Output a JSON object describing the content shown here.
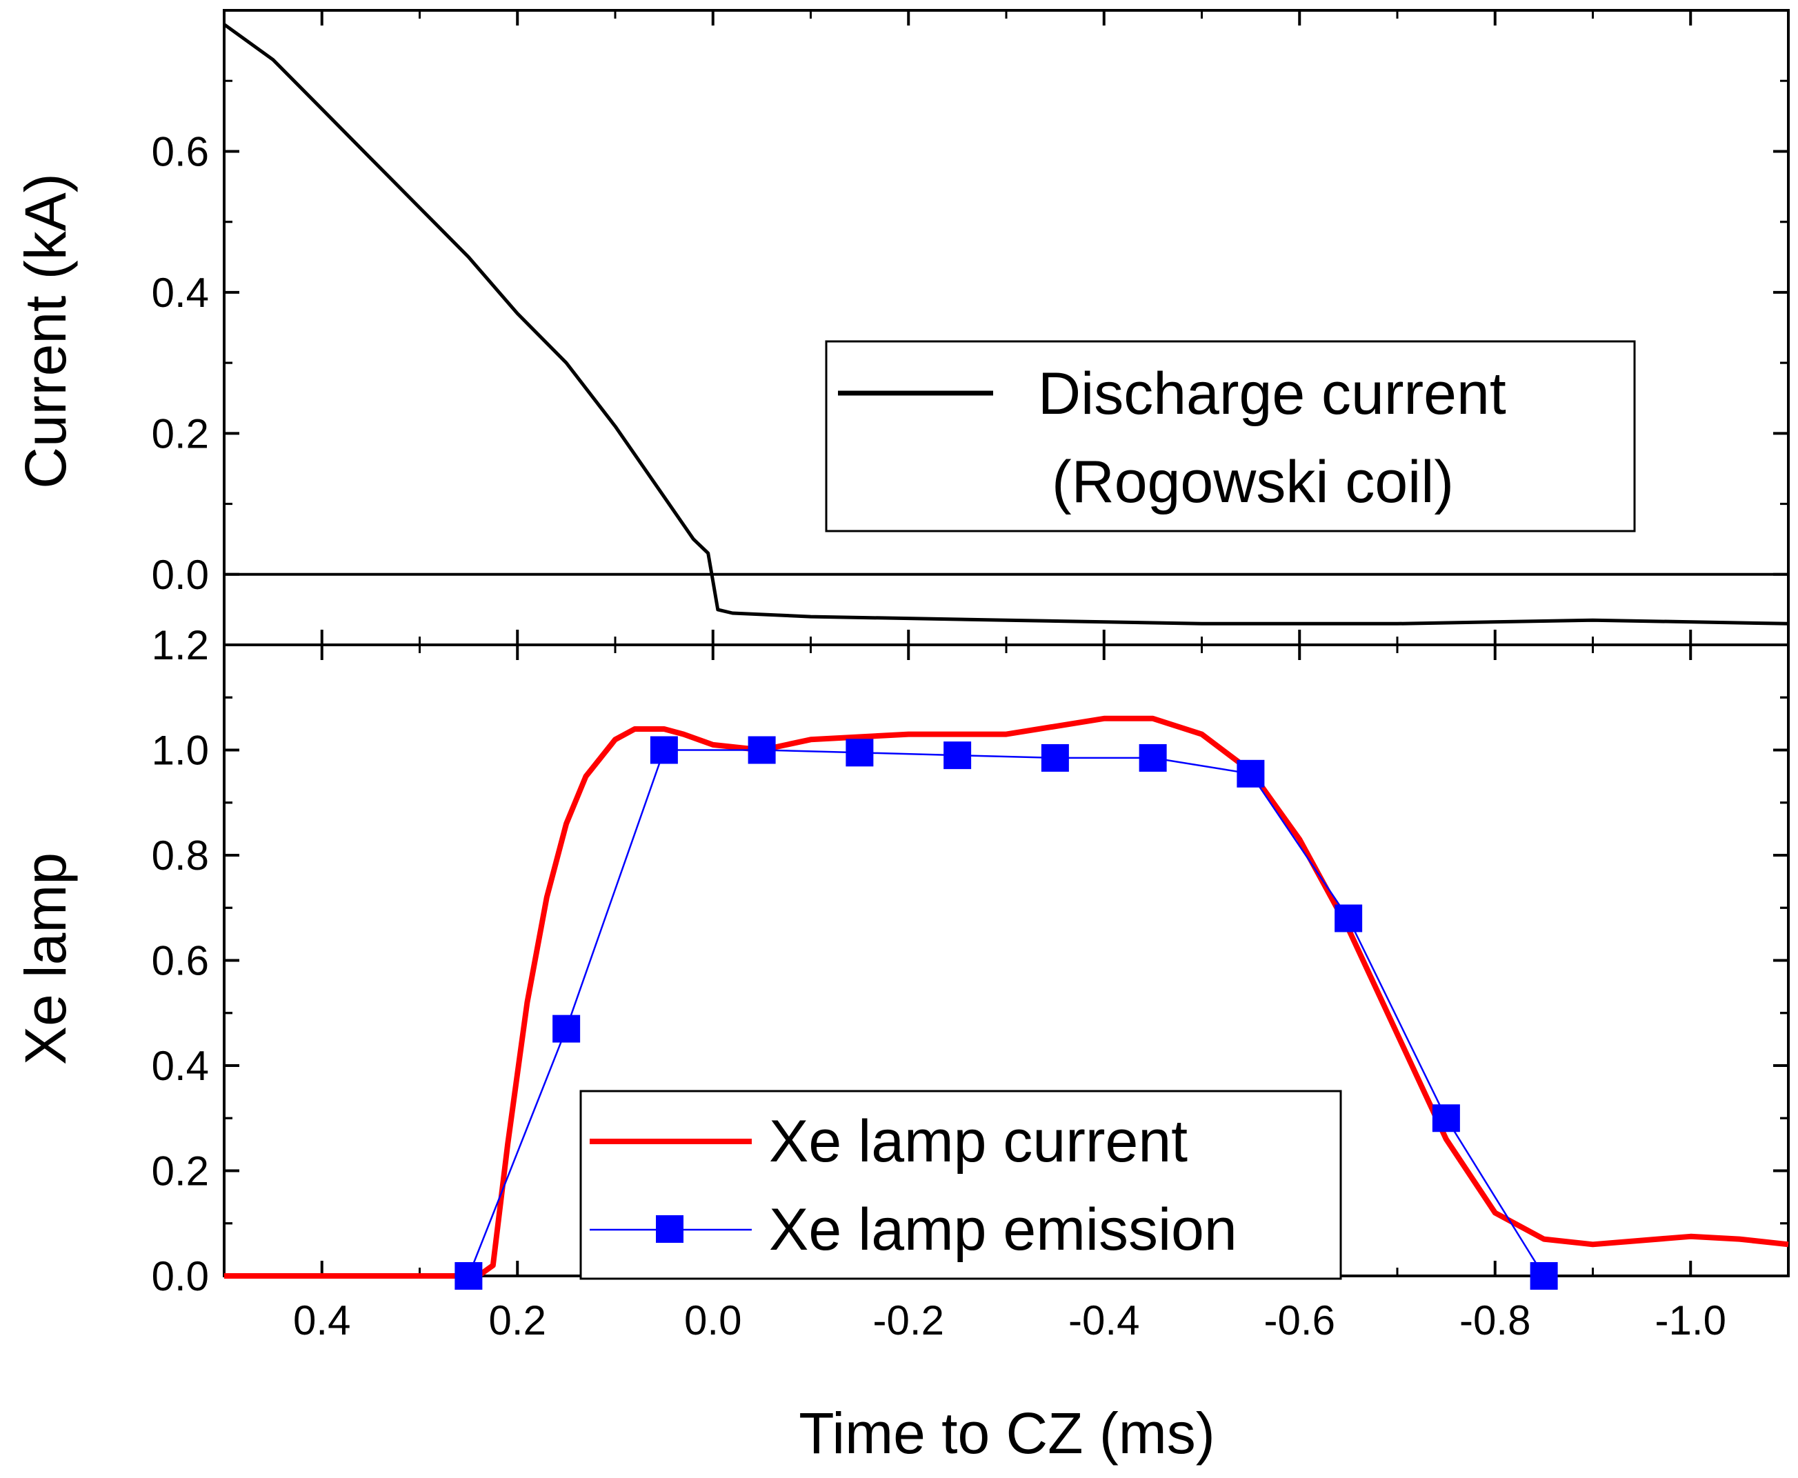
{
  "chart_data": {
    "type": "line",
    "shared_xaxis": {
      "label": "Time to CZ (ms)",
      "lim": [
        0.5,
        -1.1
      ],
      "ticks": [
        0.4,
        0.2,
        0.0,
        -0.2,
        -0.4,
        -0.6,
        -0.8,
        -1.0
      ],
      "tick_labels": [
        "0.4",
        "0.2",
        "0.0",
        "-0.2",
        "-0.4",
        "-0.6",
        "-0.8",
        "-1.0"
      ]
    },
    "panels": [
      {
        "ylabel": "Current (kA)",
        "ylim": [
          -0.1,
          0.8
        ],
        "yticks": [
          0.0,
          0.2,
          0.4,
          0.6
        ],
        "ytick_labels": [
          "0.0",
          "0.2",
          "0.4",
          "0.6"
        ],
        "zero_line": true,
        "legend": {
          "placement": "center-right",
          "entries": [
            "Discharge current",
            "(Rogowski coil)"
          ]
        },
        "series": [
          {
            "name": "Discharge current (Rogowski coil)",
            "color": "#000000",
            "style": "line",
            "x": [
              0.5,
              0.45,
              0.4,
              0.35,
              0.3,
              0.25,
              0.2,
              0.15,
              0.1,
              0.05,
              0.02,
              0.005,
              0.0,
              -0.005,
              -0.02,
              -0.1,
              -0.3,
              -0.5,
              -0.7,
              -0.9,
              -1.1
            ],
            "y": [
              0.78,
              0.73,
              0.66,
              0.59,
              0.52,
              0.45,
              0.37,
              0.3,
              0.21,
              0.11,
              0.05,
              0.03,
              -0.01,
              -0.05,
              -0.055,
              -0.06,
              -0.065,
              -0.07,
              -0.07,
              -0.065,
              -0.07
            ]
          }
        ]
      },
      {
        "ylabel": "Xe lamp",
        "ylim": [
          0.0,
          1.2
        ],
        "yticks": [
          0.0,
          0.2,
          0.4,
          0.6,
          0.8,
          1.0,
          1.2
        ],
        "ytick_labels": [
          "0.0",
          "0.2",
          "0.4",
          "0.6",
          "0.8",
          "1.0",
          "1.2"
        ],
        "legend": {
          "placement": "bottom-center",
          "entries": [
            "Xe lamp current",
            "Xe lamp emission"
          ]
        },
        "series": [
          {
            "name": "Xe lamp current",
            "color": "#ff0000",
            "style": "line",
            "x": [
              0.5,
              0.3,
              0.24,
              0.225,
              0.21,
              0.19,
              0.17,
              0.15,
              0.13,
              0.1,
              0.08,
              0.05,
              0.03,
              0.0,
              -0.05,
              -0.1,
              -0.2,
              -0.3,
              -0.4,
              -0.45,
              -0.5,
              -0.55,
              -0.6,
              -0.65,
              -0.7,
              -0.75,
              -0.8,
              -0.85,
              -0.9,
              -1.0,
              -1.05,
              -1.1
            ],
            "y": [
              0.0,
              0.0,
              0.0,
              0.02,
              0.25,
              0.52,
              0.72,
              0.86,
              0.95,
              1.02,
              1.04,
              1.04,
              1.03,
              1.01,
              1.0,
              1.02,
              1.03,
              1.03,
              1.06,
              1.06,
              1.03,
              0.96,
              0.83,
              0.66,
              0.46,
              0.26,
              0.12,
              0.07,
              0.06,
              0.075,
              0.07,
              0.06
            ]
          },
          {
            "name": "Xe lamp emission",
            "color": "#0000ff",
            "style": "line-markers",
            "marker": "square",
            "x": [
              0.25,
              0.15,
              0.05,
              -0.05,
              -0.15,
              -0.25,
              -0.35,
              -0.45,
              -0.55,
              -0.65,
              -0.75,
              -0.85
            ],
            "y": [
              0.0,
              0.47,
              1.0,
              1.0,
              0.995,
              0.99,
              0.985,
              0.985,
              0.955,
              0.68,
              0.3,
              0.0
            ]
          }
        ]
      }
    ]
  }
}
